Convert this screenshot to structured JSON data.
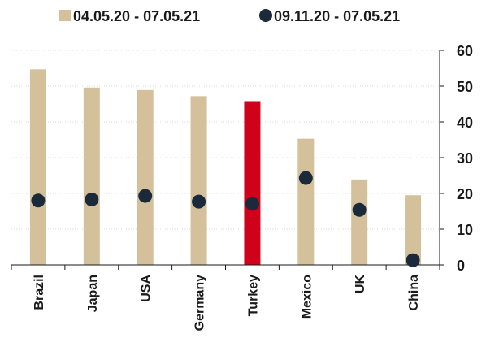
{
  "chart_data": {
    "type": "bar",
    "categories": [
      "Brazil",
      "Japan",
      "USA",
      "Germany",
      "Turkey",
      "Mexico",
      "UK",
      "China"
    ],
    "series": [
      {
        "name": "04.05.20 - 07.05.21",
        "kind": "bar",
        "color": "#d4c19c",
        "highlight": {
          "category": "Turkey",
          "color": "#d0021b"
        },
        "values": [
          54.7,
          49.6,
          48.9,
          47.2,
          45.8,
          35.3,
          23.9,
          19.5
        ]
      },
      {
        "name": "09.11.20 - 07.05.21",
        "kind": "point",
        "color": "#1b2a3a",
        "values": [
          18.0,
          18.3,
          19.3,
          17.7,
          17.1,
          24.3,
          15.4,
          1.3
        ]
      }
    ],
    "yaxis": {
      "position": "right",
      "ylim": [
        0,
        60
      ],
      "ticks": [
        0,
        10,
        20,
        30,
        40,
        50,
        60
      ]
    },
    "grid": true,
    "legend": "top-center",
    "title": "",
    "xlabel": "",
    "ylabel": ""
  }
}
